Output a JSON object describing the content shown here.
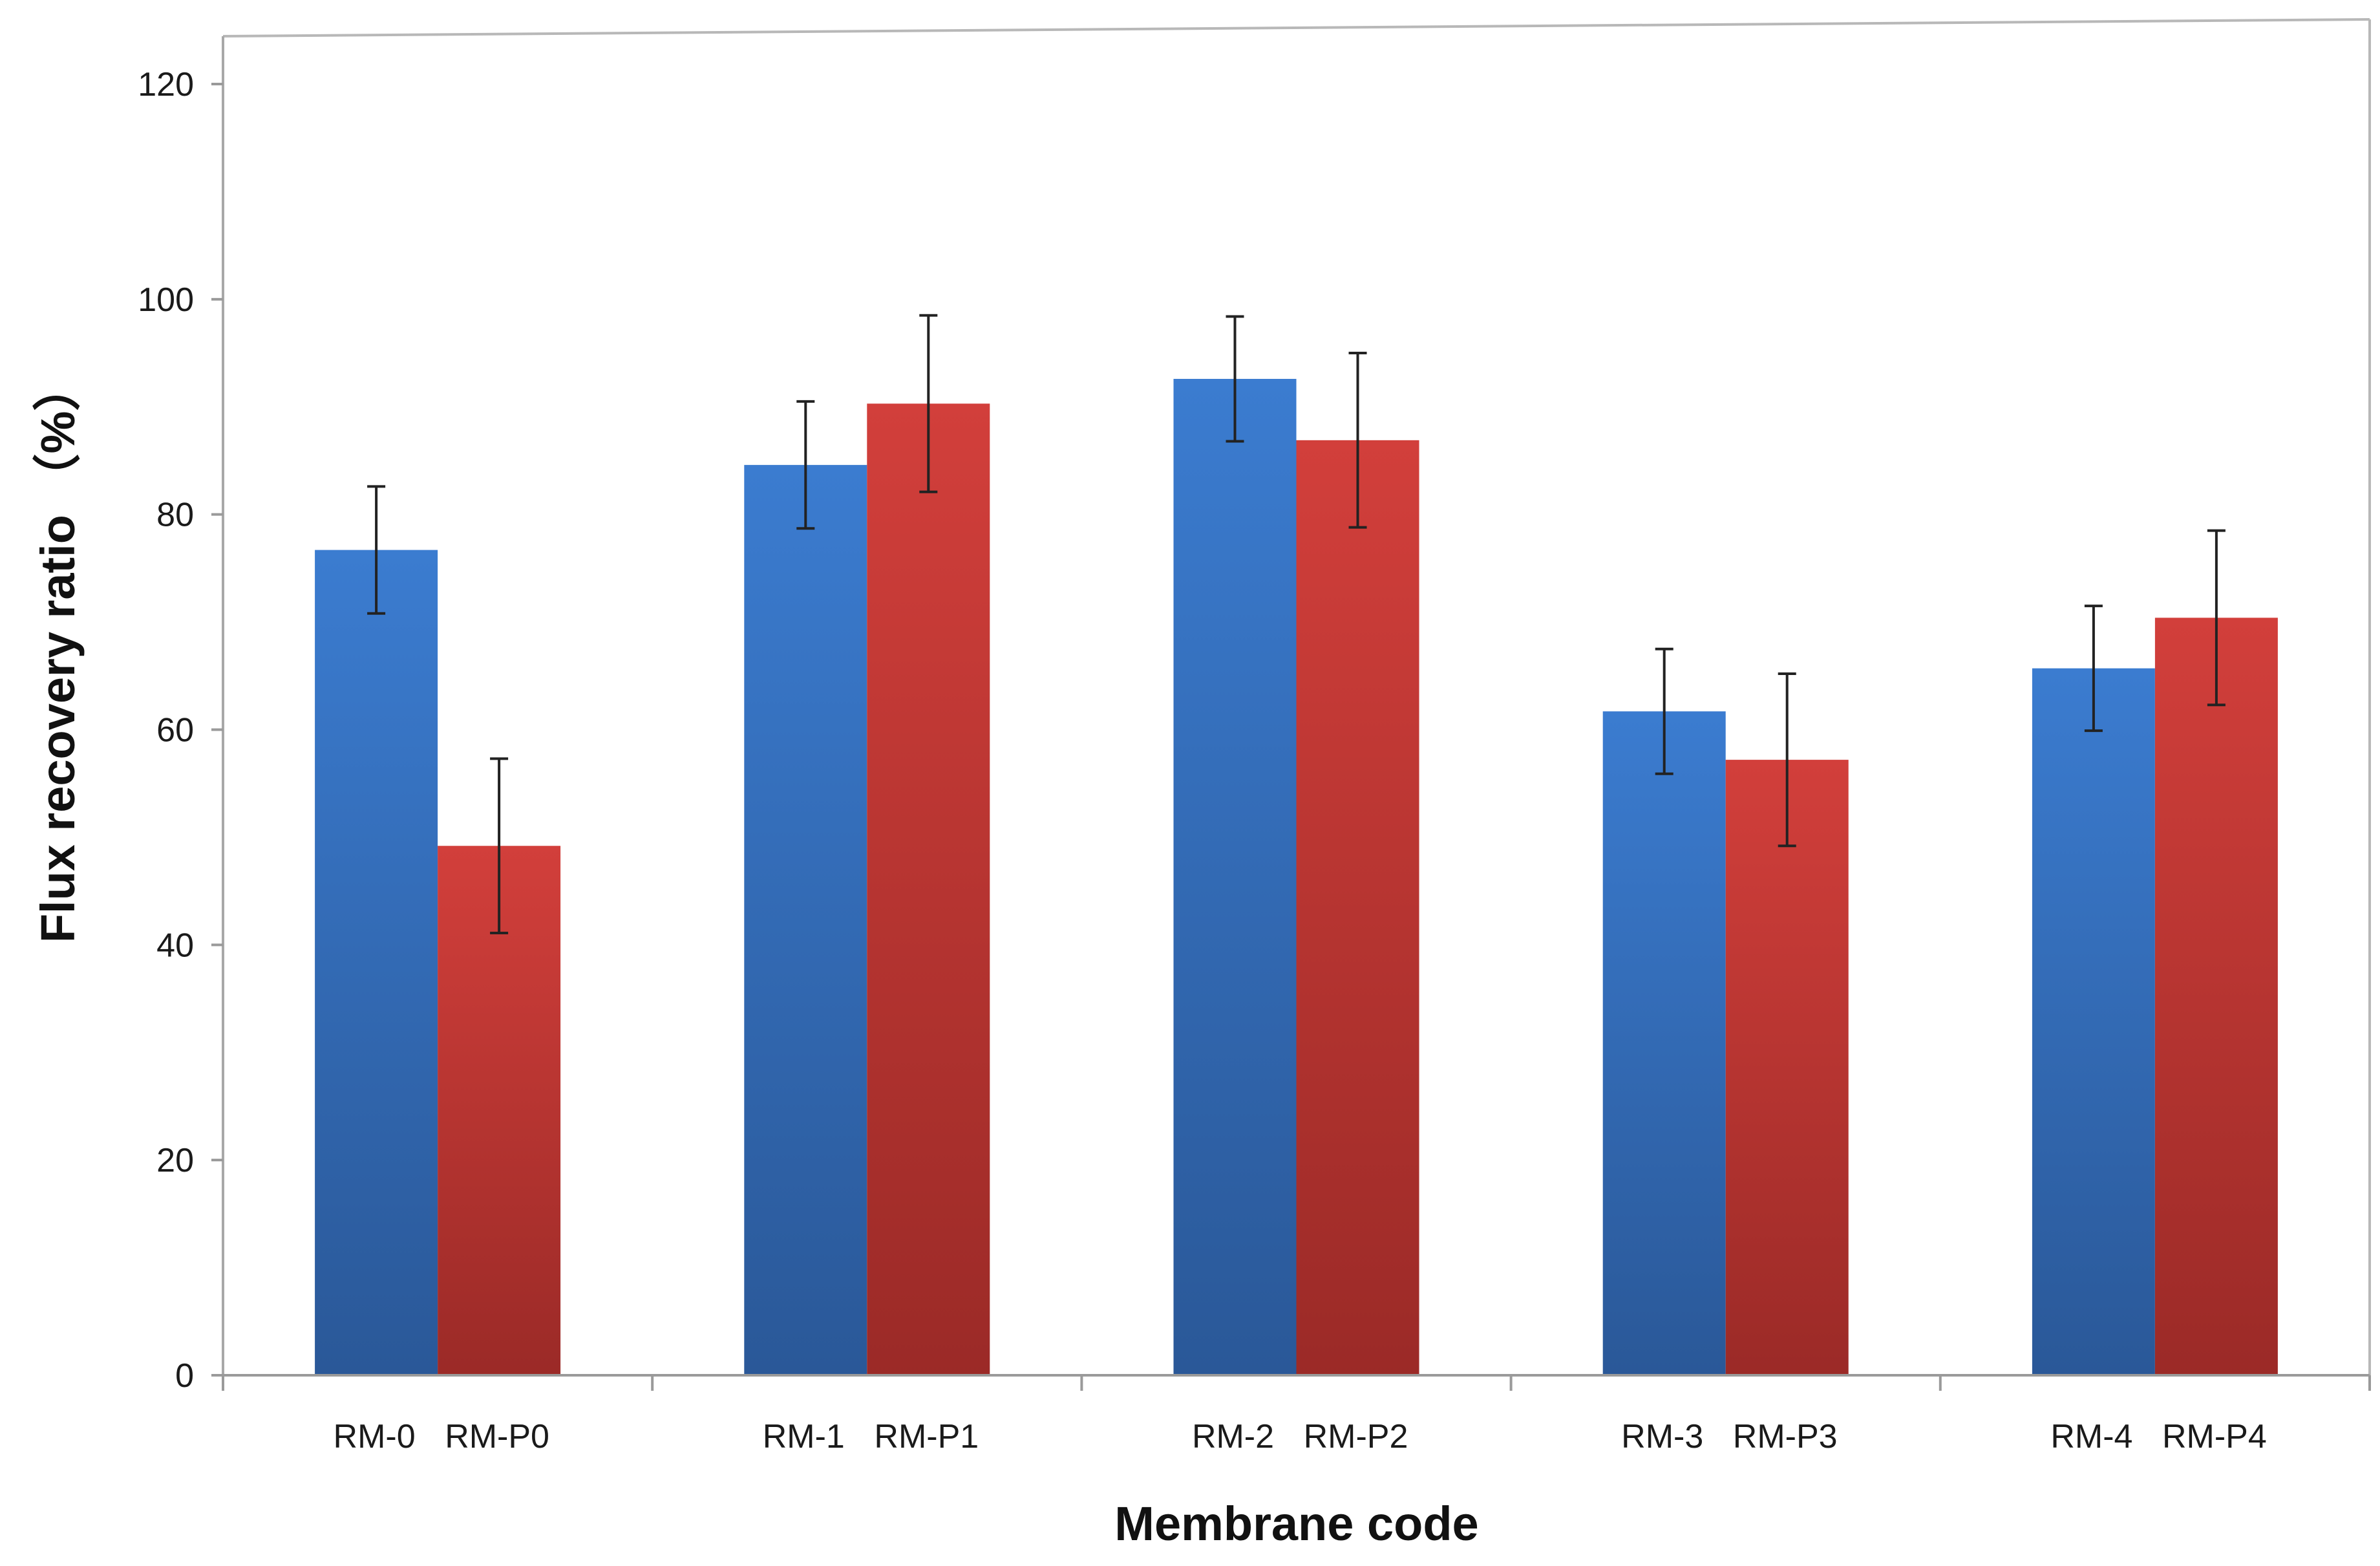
{
  "chart_data": {
    "type": "bar",
    "title": "",
    "xlabel": "Membrane code",
    "ylabel": "Flux recovery ratio （%）",
    "ylim": [
      0,
      120
    ],
    "yticks": [
      0,
      20,
      40,
      60,
      80,
      100,
      120
    ],
    "groups": 5,
    "series": [
      {
        "name": "RM",
        "color_top": "#3b7cd0",
        "color_bottom": "#2a5898",
        "labels": [
          "RM-0",
          "RM-1",
          "RM-2",
          "RM-3",
          "RM-4"
        ],
        "values": [
          76.7,
          84.6,
          92.6,
          61.7,
          65.7
        ],
        "errors": [
          5.9,
          5.9,
          5.8,
          5.8,
          5.8
        ]
      },
      {
        "name": "RM-P",
        "color_top": "#d23f3b",
        "color_bottom": "#9b2a27",
        "labels": [
          "RM-P0",
          "RM-P1",
          "RM-P2",
          "RM-P3",
          "RM-P4"
        ],
        "values": [
          49.2,
          90.3,
          86.9,
          57.2,
          70.4
        ],
        "errors": [
          8.1,
          8.2,
          8.1,
          8.0,
          8.1
        ]
      }
    ],
    "grid": false,
    "legend": "none"
  }
}
